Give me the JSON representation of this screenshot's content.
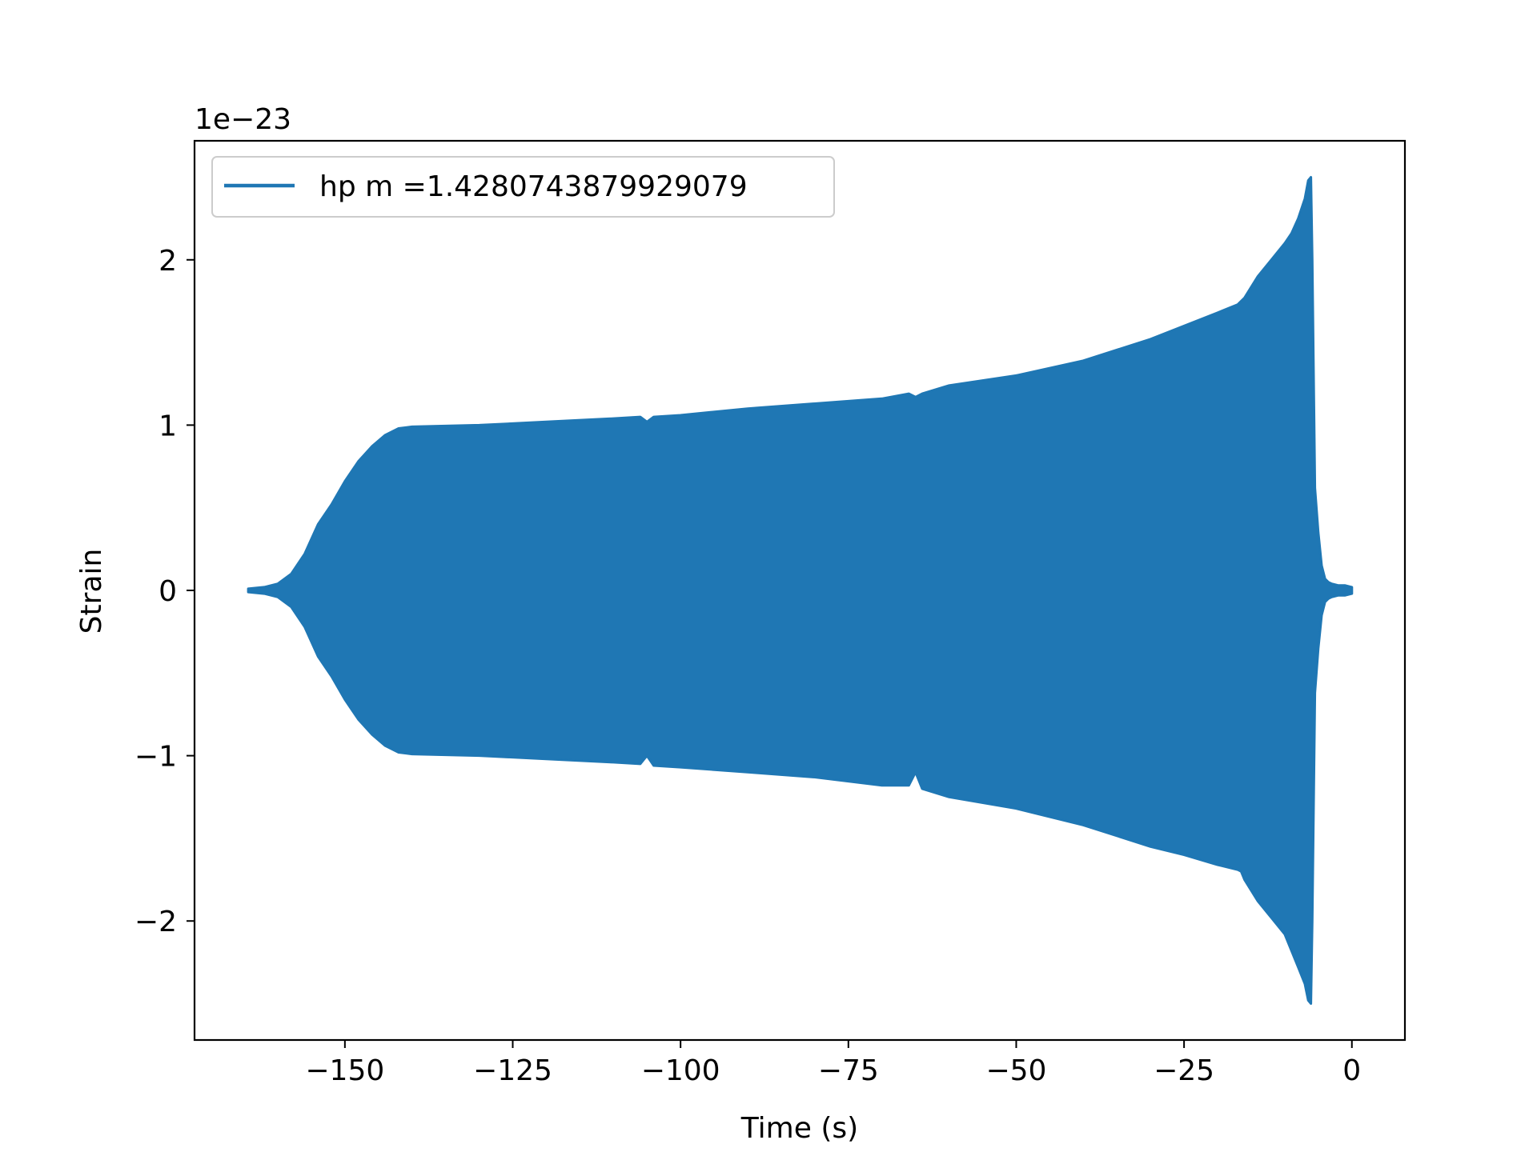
{
  "chart_data": {
    "type": "area",
    "title": "",
    "xlabel": "Time (s)",
    "ylabel": "Strain",
    "y_offset_label": "1e−23",
    "xlim": [
      -172.4,
      7.9
    ],
    "ylim": [
      -2.72,
      2.72
    ],
    "xticks": [
      -150,
      -125,
      -100,
      -75,
      -50,
      -25,
      0
    ],
    "xtick_labels": [
      "−150",
      "−125",
      "−100",
      "−75",
      "−50",
      "−25",
      "0"
    ],
    "yticks": [
      -2,
      -1,
      0,
      1,
      2
    ],
    "ytick_labels": [
      "−2",
      "−1",
      "0",
      "1",
      "2"
    ],
    "grid": false,
    "legend": {
      "position": "upper-left",
      "entries": [
        "hp m =1.4280743879929079"
      ]
    },
    "series": [
      {
        "name": "hp m =1.4280743879929079",
        "color": "#1f77b4",
        "x": [
          -164.4,
          -162,
          -160,
          -158,
          -156,
          -154,
          -152,
          -150,
          -148,
          -146,
          -144,
          -142,
          -140,
          -130,
          -120,
          -110,
          -106,
          -105,
          -104,
          -100,
          -90,
          -80,
          -70,
          -66,
          -65,
          -64,
          -60,
          -50,
          -40,
          -30,
          -25,
          -20,
          -17,
          -16.5,
          -16,
          -14,
          -12,
          -10,
          -9,
          -8,
          -7,
          -6.5,
          -6.1,
          -5.9,
          -5.5,
          -5,
          -4.5,
          -4,
          -3.5,
          -3,
          -2,
          -1,
          0
        ],
        "upper": [
          0.01,
          0.02,
          0.04,
          0.1,
          0.22,
          0.4,
          0.52,
          0.66,
          0.78,
          0.87,
          0.94,
          0.98,
          0.99,
          1.0,
          1.02,
          1.04,
          1.05,
          1.02,
          1.05,
          1.06,
          1.1,
          1.13,
          1.16,
          1.19,
          1.17,
          1.19,
          1.24,
          1.3,
          1.39,
          1.52,
          1.6,
          1.68,
          1.73,
          1.75,
          1.77,
          1.9,
          2.0,
          2.1,
          2.16,
          2.25,
          2.37,
          2.48,
          2.5,
          2.0,
          0.62,
          0.35,
          0.15,
          0.07,
          0.05,
          0.04,
          0.03,
          0.03,
          0.02
        ],
        "lower": [
          -0.01,
          -0.02,
          -0.04,
          -0.1,
          -0.22,
          -0.4,
          -0.52,
          -0.66,
          -0.78,
          -0.87,
          -0.94,
          -0.98,
          -0.99,
          -1.0,
          -1.02,
          -1.04,
          -1.05,
          -1.0,
          -1.06,
          -1.07,
          -1.1,
          -1.13,
          -1.18,
          -1.18,
          -1.1,
          -1.2,
          -1.25,
          -1.32,
          -1.42,
          -1.55,
          -1.6,
          -1.66,
          -1.69,
          -1.7,
          -1.75,
          -1.88,
          -1.98,
          -2.08,
          -2.18,
          -2.28,
          -2.38,
          -2.48,
          -2.5,
          -2.0,
          -0.62,
          -0.35,
          -0.15,
          -0.07,
          -0.05,
          -0.04,
          -0.03,
          -0.03,
          -0.02
        ]
      }
    ]
  }
}
